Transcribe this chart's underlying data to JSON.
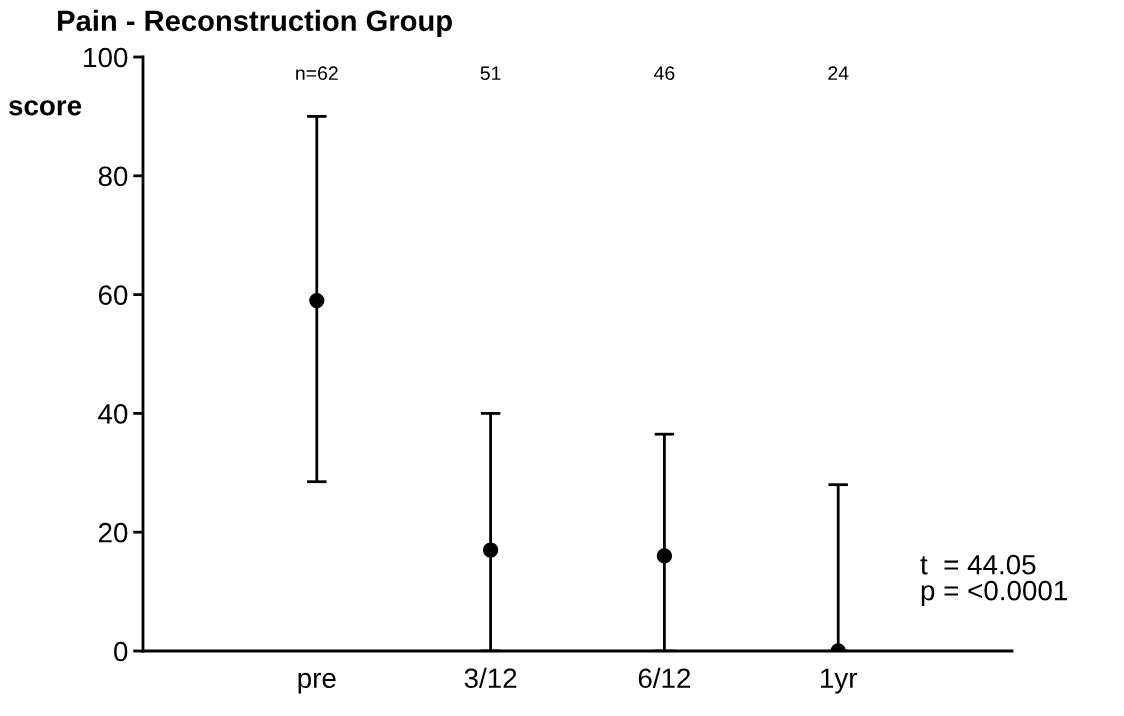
{
  "chart_data": {
    "type": "scatter",
    "title": "Pain - Reconstruction Group",
    "ylabel": "score",
    "categories": [
      "pre",
      "3/12",
      "6/12",
      "1yr"
    ],
    "values": [
      59,
      17,
      16,
      0
    ],
    "errors": [
      [
        28.5,
        90
      ],
      [
        0,
        40
      ],
      [
        0,
        36.5
      ],
      [
        0,
        28
      ]
    ],
    "color": "#000000",
    "marker": "circle",
    "ylim": [
      0,
      100
    ],
    "yticks": [
      0,
      20,
      40,
      60,
      80,
      100
    ],
    "grid": false,
    "legend": false,
    "annotations": [
      "n=62",
      "51",
      "46",
      "24",
      "t  = 44.05\np = <0.0001"
    ]
  }
}
